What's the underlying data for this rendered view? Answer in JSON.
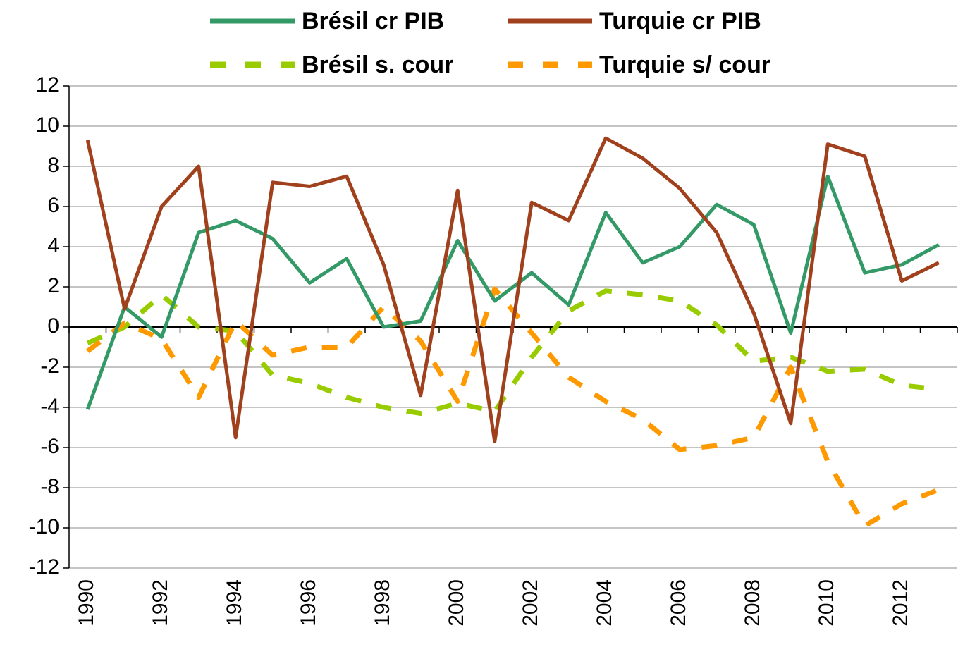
{
  "chart_data": {
    "type": "line",
    "categories": [
      "1990",
      null,
      "1992",
      null,
      "1994",
      null,
      "1996",
      null,
      "1998",
      null,
      "2000",
      null,
      "2002",
      null,
      "2004",
      null,
      "2006",
      null,
      "2008",
      null,
      "2010",
      null,
      "2012",
      null
    ],
    "series": [
      {
        "name": "Brésil cr PIB",
        "color": "#339966",
        "dash": false,
        "values": [
          -4.1,
          1.0,
          -0.5,
          4.7,
          5.3,
          4.4,
          2.2,
          3.4,
          0.0,
          0.3,
          4.3,
          1.3,
          2.7,
          1.1,
          5.7,
          3.2,
          4.0,
          6.1,
          5.1,
          -0.3,
          7.5,
          2.7,
          3.1,
          4.1
        ]
      },
      {
        "name": "Turquie cr PIB",
        "color": "#a0401c",
        "dash": false,
        "values": [
          9.3,
          0.9,
          6.0,
          8.0,
          -5.5,
          7.2,
          7.0,
          7.5,
          3.1,
          -3.4,
          6.8,
          -5.7,
          6.2,
          5.3,
          9.4,
          8.4,
          6.9,
          4.7,
          0.7,
          -4.8,
          9.1,
          8.5,
          2.3,
          3.2
        ]
      },
      {
        "name": "Brésil s. cour",
        "color": "#99cc00",
        "dash": true,
        "values": [
          -0.8,
          0.0,
          1.6,
          0.0,
          -0.2,
          -2.4,
          -2.8,
          -3.5,
          -4.0,
          -4.3,
          -3.8,
          -4.2,
          -1.5,
          0.8,
          1.8,
          1.6,
          1.3,
          0.1,
          -1.7,
          -1.5,
          -2.2,
          -2.1,
          -2.9,
          -3.1
        ]
      },
      {
        "name": "Turquie s/ cour",
        "color": "#ff9900",
        "dash": true,
        "values": [
          -1.2,
          0.2,
          -0.6,
          -3.5,
          0.3,
          -1.4,
          -1.0,
          -1.0,
          1.0,
          -0.7,
          -3.7,
          1.9,
          -0.3,
          -2.5,
          -3.7,
          -4.6,
          -6.1,
          -5.9,
          -5.5,
          -2.0,
          -6.7,
          -9.9,
          -8.8,
          -8.1
        ]
      }
    ],
    "ylim": [
      -12,
      12
    ],
    "yticks": [
      -12,
      -10,
      -8,
      -6,
      -4,
      -2,
      0,
      2,
      4,
      6,
      8,
      10,
      12
    ],
    "grid": true
  }
}
